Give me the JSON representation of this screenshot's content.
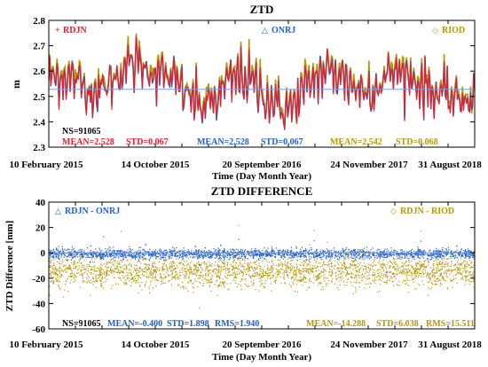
{
  "colors": {
    "rdjn": "#ee1c25",
    "onrj": "#1f5fcf",
    "riod": "#b8960a",
    "frame": "#000000",
    "ns": "#000000"
  },
  "x_tick_labels": [
    "10 February 2015",
    "14 October 2015",
    "20 September 2016",
    "24 November 2017",
    "31 August 2018"
  ],
  "xlabel": "Time (Day Month Year)",
  "chart_data": [
    {
      "type": "scatter",
      "title": "ZTD",
      "ylabel": "m",
      "ylim": [
        2.3,
        2.8
      ],
      "yticks": [
        "2.3",
        "2.4",
        "2.5",
        "2.6",
        "2.7",
        "2.8"
      ],
      "legend_placement": "top",
      "series": [
        {
          "name": "RDJN",
          "legend_marker": "+",
          "color": "#ee1c25"
        },
        {
          "name": "ONRJ",
          "legend_marker": "△",
          "color": "#1f5fcf"
        },
        {
          "name": "RIOD",
          "legend_marker": "◇",
          "color": "#b8960a"
        }
      ],
      "stats": {
        "ns": "NS=91065",
        "items": [
          {
            "mean": "MEAN=2.528",
            "std": "STD=0.067",
            "color": "#ee1c25"
          },
          {
            "mean": "MEAN=2.528",
            "std": "STD=0.067",
            "color": "#1f5fcf"
          },
          {
            "mean": "MEAN=2.542",
            "std": "STD=0.068",
            "color": "#b8960a"
          }
        ]
      },
      "trend_x": [
        0,
        0.03,
        0.06,
        0.09,
        0.12,
        0.15,
        0.18,
        0.21,
        0.24,
        0.27,
        0.3,
        0.33,
        0.36,
        0.39,
        0.42,
        0.45,
        0.48,
        0.51,
        0.54,
        0.57,
        0.6,
        0.63,
        0.66,
        0.69,
        0.72,
        0.75,
        0.78,
        0.81,
        0.84,
        0.87,
        0.9,
        0.93,
        0.96,
        1.0
      ],
      "trend_y": [
        2.57,
        2.58,
        2.56,
        2.53,
        2.52,
        2.56,
        2.62,
        2.63,
        2.6,
        2.58,
        2.55,
        2.5,
        2.46,
        2.48,
        2.55,
        2.58,
        2.55,
        2.5,
        2.45,
        2.45,
        2.52,
        2.58,
        2.6,
        2.58,
        2.53,
        2.52,
        2.55,
        2.6,
        2.58,
        2.55,
        2.52,
        2.5,
        2.48,
        2.5
      ]
    },
    {
      "type": "scatter",
      "title": "ZTD DIFFERENCE",
      "ylabel": "ZTD Difference [mm]",
      "ylim": [
        -60,
        40
      ],
      "yticks": [
        "-60",
        "-40",
        "-20",
        "0",
        "20",
        "40"
      ],
      "legend_placement": "top",
      "series": [
        {
          "name": "RDJN - ONRJ",
          "legend_marker": "△",
          "color": "#1f5fcf",
          "mean": -0.4,
          "std": 1.898
        },
        {
          "name": "RDJN - RIOD",
          "legend_marker": "◇",
          "color": "#b8960a",
          "mean": -14.288,
          "std": 6.038
        }
      ],
      "stats": {
        "ns": "NS=91065",
        "items": [
          {
            "mean": "MEAN=-0.400",
            "std": "STD=1.898",
            "rms": "RMS=1.940",
            "color": "#1f5fcf"
          },
          {
            "mean": "MEAN=-14.288",
            "std": "STD=6.038",
            "rms": "RMS=15.511",
            "color": "#b8960a"
          }
        ]
      }
    }
  ]
}
